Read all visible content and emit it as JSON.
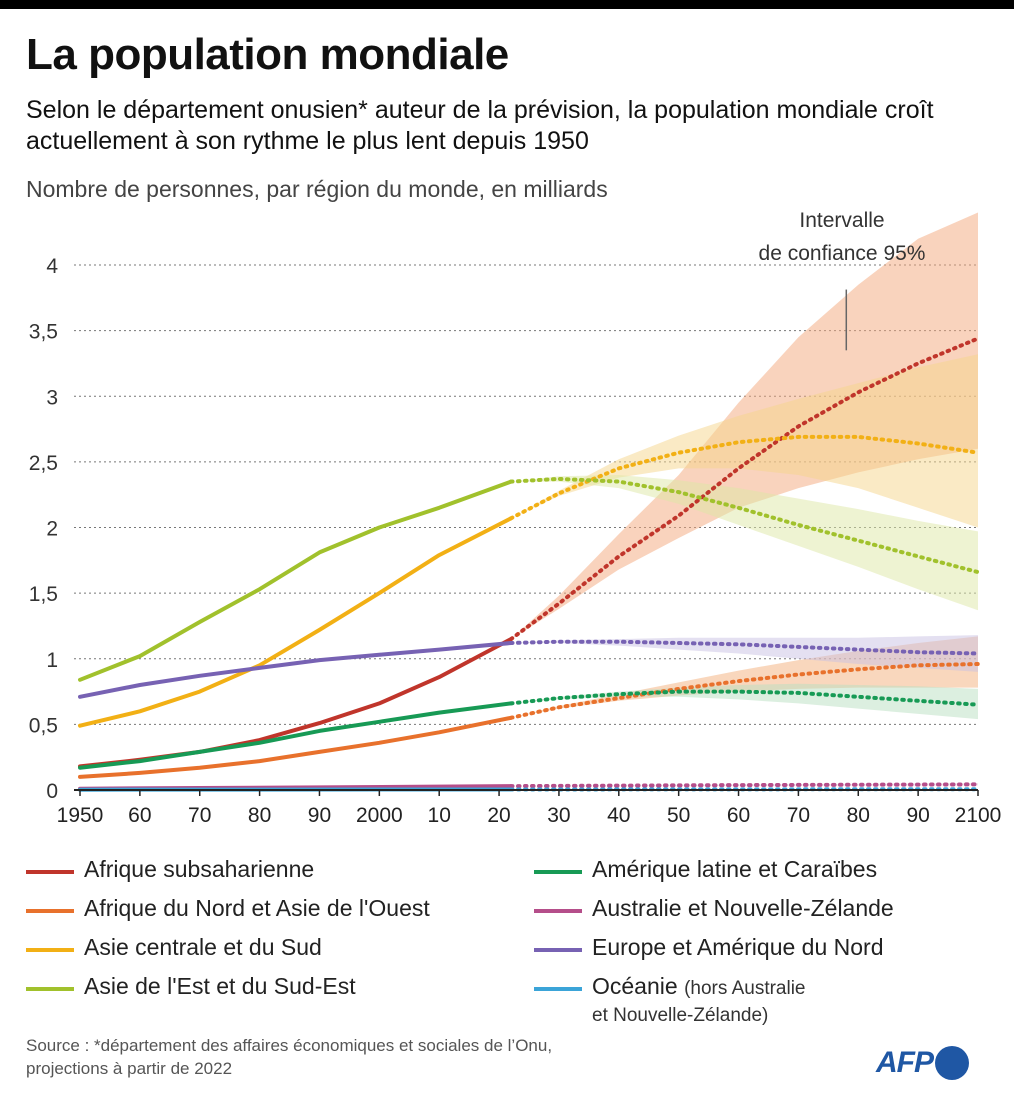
{
  "header": {
    "title": "La population mondiale",
    "subtitle": "Selon le département onusien* auteur de la prévision, la population mondiale croît actuellement à son rythme le plus lent depuis 1950",
    "unit_label": "Nombre de personnes, par région du monde, en milliards"
  },
  "chart_data": {
    "type": "line",
    "title": "La population mondiale",
    "ylabel": "Nombre de personnes, par région du monde, en milliards",
    "xlim": [
      1950,
      2100
    ],
    "ylim": [
      0,
      4
    ],
    "projection_start": 2022,
    "y_ticks": [
      {
        "value": 0,
        "label": "0"
      },
      {
        "value": 0.5,
        "label": "0,5"
      },
      {
        "value": 1,
        "label": "1"
      },
      {
        "value": 1.5,
        "label": "1,5"
      },
      {
        "value": 2,
        "label": "2"
      },
      {
        "value": 2.5,
        "label": "2,5"
      },
      {
        "value": 3,
        "label": "3"
      },
      {
        "value": 3.5,
        "label": "3,5"
      },
      {
        "value": 4,
        "label": "4"
      }
    ],
    "x_ticks": [
      {
        "value": 1950,
        "label": "1950"
      },
      {
        "value": 1960,
        "label": "60"
      },
      {
        "value": 1970,
        "label": "70"
      },
      {
        "value": 1980,
        "label": "80"
      },
      {
        "value": 1990,
        "label": "90"
      },
      {
        "value": 2000,
        "label": "2000"
      },
      {
        "value": 2010,
        "label": "10"
      },
      {
        "value": 2020,
        "label": "20"
      },
      {
        "value": 2030,
        "label": "30"
      },
      {
        "value": 2040,
        "label": "40"
      },
      {
        "value": 2050,
        "label": "50"
      },
      {
        "value": 2060,
        "label": "60"
      },
      {
        "value": 2070,
        "label": "70"
      },
      {
        "value": 2080,
        "label": "80"
      },
      {
        "value": 2090,
        "label": "90"
      },
      {
        "value": 2100,
        "label": "2100"
      }
    ],
    "annotation": {
      "line1": "Intervalle",
      "line2": "de confiance 95%",
      "x": 2078,
      "y_from": 3.35,
      "y_to": 3.95
    },
    "series": [
      {
        "name": "Afrique subsaharienne",
        "color": "#c0352b",
        "band_color": "#f4a87c",
        "historical": [
          [
            1950,
            0.18
          ],
          [
            1960,
            0.23
          ],
          [
            1970,
            0.29
          ],
          [
            1980,
            0.38
          ],
          [
            1990,
            0.51
          ],
          [
            2000,
            0.66
          ],
          [
            2010,
            0.86
          ],
          [
            2022,
            1.15
          ]
        ],
        "projection": [
          [
            2022,
            1.15
          ],
          [
            2030,
            1.42
          ],
          [
            2040,
            1.78
          ],
          [
            2050,
            2.09
          ],
          [
            2060,
            2.45
          ],
          [
            2070,
            2.77
          ],
          [
            2080,
            3.03
          ],
          [
            2090,
            3.25
          ],
          [
            2100,
            3.44
          ]
        ],
        "band_low": [
          [
            2022,
            1.15
          ],
          [
            2030,
            1.38
          ],
          [
            2040,
            1.68
          ],
          [
            2050,
            1.92
          ],
          [
            2060,
            2.15
          ],
          [
            2070,
            2.3
          ],
          [
            2080,
            2.42
          ],
          [
            2090,
            2.52
          ],
          [
            2100,
            2.6
          ]
        ],
        "band_high": [
          [
            2022,
            1.15
          ],
          [
            2030,
            1.48
          ],
          [
            2040,
            1.95
          ],
          [
            2050,
            2.4
          ],
          [
            2060,
            2.95
          ],
          [
            2070,
            3.45
          ],
          [
            2080,
            3.85
          ],
          [
            2090,
            4.2
          ],
          [
            2100,
            4.4
          ]
        ]
      },
      {
        "name": "Afrique du Nord et Asie de l'Ouest",
        "color": "#e8712c",
        "band_color": "#f4b07c",
        "historical": [
          [
            1950,
            0.1
          ],
          [
            1960,
            0.13
          ],
          [
            1970,
            0.17
          ],
          [
            1980,
            0.22
          ],
          [
            1990,
            0.29
          ],
          [
            2000,
            0.36
          ],
          [
            2010,
            0.44
          ],
          [
            2022,
            0.55
          ]
        ],
        "projection": [
          [
            2022,
            0.55
          ],
          [
            2030,
            0.63
          ],
          [
            2040,
            0.7
          ],
          [
            2050,
            0.77
          ],
          [
            2060,
            0.83
          ],
          [
            2070,
            0.88
          ],
          [
            2080,
            0.92
          ],
          [
            2090,
            0.95
          ],
          [
            2100,
            0.96
          ]
        ],
        "band_low": [
          [
            2022,
            0.55
          ],
          [
            2030,
            0.62
          ],
          [
            2040,
            0.68
          ],
          [
            2050,
            0.72
          ],
          [
            2060,
            0.75
          ],
          [
            2070,
            0.77
          ],
          [
            2080,
            0.78
          ],
          [
            2090,
            0.78
          ],
          [
            2100,
            0.78
          ]
        ],
        "band_high": [
          [
            2022,
            0.55
          ],
          [
            2030,
            0.64
          ],
          [
            2040,
            0.73
          ],
          [
            2050,
            0.82
          ],
          [
            2060,
            0.91
          ],
          [
            2070,
            0.99
          ],
          [
            2080,
            1.06
          ],
          [
            2090,
            1.12
          ],
          [
            2100,
            1.17
          ]
        ]
      },
      {
        "name": "Asie centrale et du Sud",
        "color": "#f2b015",
        "band_color": "#f6d68c",
        "historical": [
          [
            1950,
            0.49
          ],
          [
            1960,
            0.6
          ],
          [
            1970,
            0.75
          ],
          [
            1980,
            0.95
          ],
          [
            1990,
            1.22
          ],
          [
            2000,
            1.5
          ],
          [
            2010,
            1.79
          ],
          [
            2022,
            2.07
          ]
        ],
        "projection": [
          [
            2022,
            2.07
          ],
          [
            2030,
            2.26
          ],
          [
            2040,
            2.45
          ],
          [
            2050,
            2.57
          ],
          [
            2060,
            2.65
          ],
          [
            2070,
            2.69
          ],
          [
            2080,
            2.69
          ],
          [
            2090,
            2.64
          ],
          [
            2100,
            2.57
          ]
        ],
        "band_low": [
          [
            2022,
            2.07
          ],
          [
            2030,
            2.24
          ],
          [
            2040,
            2.38
          ],
          [
            2050,
            2.45
          ],
          [
            2060,
            2.45
          ],
          [
            2070,
            2.4
          ],
          [
            2080,
            2.3
          ],
          [
            2090,
            2.15
          ],
          [
            2100,
            2.0
          ]
        ],
        "band_high": [
          [
            2022,
            2.07
          ],
          [
            2030,
            2.28
          ],
          [
            2040,
            2.52
          ],
          [
            2050,
            2.7
          ],
          [
            2060,
            2.85
          ],
          [
            2070,
            2.98
          ],
          [
            2080,
            3.1
          ],
          [
            2090,
            3.22
          ],
          [
            2100,
            3.32
          ]
        ]
      },
      {
        "name": "Asie de l'Est et du Sud-Est",
        "color": "#a1c12c",
        "band_color": "#dde8a5",
        "historical": [
          [
            1950,
            0.84
          ],
          [
            1960,
            1.02
          ],
          [
            1970,
            1.28
          ],
          [
            1980,
            1.53
          ],
          [
            1990,
            1.81
          ],
          [
            2000,
            2.0
          ],
          [
            2010,
            2.15
          ],
          [
            2022,
            2.35
          ]
        ],
        "projection": [
          [
            2022,
            2.35
          ],
          [
            2030,
            2.37
          ],
          [
            2040,
            2.35
          ],
          [
            2050,
            2.27
          ],
          [
            2060,
            2.15
          ],
          [
            2070,
            2.02
          ],
          [
            2080,
            1.9
          ],
          [
            2090,
            1.78
          ],
          [
            2100,
            1.66
          ]
        ],
        "band_low": [
          [
            2022,
            2.35
          ],
          [
            2030,
            2.35
          ],
          [
            2040,
            2.3
          ],
          [
            2050,
            2.18
          ],
          [
            2060,
            2.02
          ],
          [
            2070,
            1.86
          ],
          [
            2080,
            1.7
          ],
          [
            2090,
            1.53
          ],
          [
            2100,
            1.37
          ]
        ],
        "band_high": [
          [
            2022,
            2.35
          ],
          [
            2030,
            2.39
          ],
          [
            2040,
            2.4
          ],
          [
            2050,
            2.36
          ],
          [
            2060,
            2.3
          ],
          [
            2070,
            2.22
          ],
          [
            2080,
            2.14
          ],
          [
            2090,
            2.05
          ],
          [
            2100,
            1.97
          ]
        ]
      },
      {
        "name": "Amérique latine et Caraïbes",
        "color": "#179a55",
        "band_color": "#b9dfc1",
        "historical": [
          [
            1950,
            0.17
          ],
          [
            1960,
            0.22
          ],
          [
            1970,
            0.29
          ],
          [
            1980,
            0.36
          ],
          [
            1990,
            0.45
          ],
          [
            2000,
            0.52
          ],
          [
            2010,
            0.59
          ],
          [
            2022,
            0.66
          ]
        ],
        "projection": [
          [
            2022,
            0.66
          ],
          [
            2030,
            0.7
          ],
          [
            2040,
            0.73
          ],
          [
            2050,
            0.75
          ],
          [
            2060,
            0.75
          ],
          [
            2070,
            0.74
          ],
          [
            2080,
            0.71
          ],
          [
            2090,
            0.68
          ],
          [
            2100,
            0.65
          ]
        ],
        "band_low": [
          [
            2022,
            0.66
          ],
          [
            2030,
            0.69
          ],
          [
            2040,
            0.71
          ],
          [
            2050,
            0.71
          ],
          [
            2060,
            0.69
          ],
          [
            2070,
            0.66
          ],
          [
            2080,
            0.62
          ],
          [
            2090,
            0.58
          ],
          [
            2100,
            0.54
          ]
        ],
        "band_high": [
          [
            2022,
            0.66
          ],
          [
            2030,
            0.71
          ],
          [
            2040,
            0.75
          ],
          [
            2050,
            0.78
          ],
          [
            2060,
            0.8
          ],
          [
            2070,
            0.81
          ],
          [
            2080,
            0.8
          ],
          [
            2090,
            0.79
          ],
          [
            2100,
            0.77
          ]
        ]
      },
      {
        "name": "Australie et Nouvelle-Zélande",
        "color": "#b54e8a",
        "band_color": "#e9c2d8",
        "historical": [
          [
            1950,
            0.01
          ],
          [
            1970,
            0.015
          ],
          [
            1990,
            0.02
          ],
          [
            2022,
            0.03
          ]
        ],
        "projection": [
          [
            2022,
            0.03
          ],
          [
            2060,
            0.037
          ],
          [
            2100,
            0.043
          ]
        ],
        "band_low": [
          [
            2022,
            0.03
          ],
          [
            2100,
            0.035
          ]
        ],
        "band_high": [
          [
            2022,
            0.03
          ],
          [
            2100,
            0.052
          ]
        ]
      },
      {
        "name": "Europe et Amérique du Nord",
        "color": "#7762b3",
        "band_color": "#c9c1e3",
        "historical": [
          [
            1950,
            0.71
          ],
          [
            1960,
            0.8
          ],
          [
            1970,
            0.87
          ],
          [
            1980,
            0.93
          ],
          [
            1990,
            0.99
          ],
          [
            2000,
            1.03
          ],
          [
            2010,
            1.07
          ],
          [
            2022,
            1.12
          ]
        ],
        "projection": [
          [
            2022,
            1.12
          ],
          [
            2030,
            1.13
          ],
          [
            2040,
            1.13
          ],
          [
            2050,
            1.12
          ],
          [
            2060,
            1.11
          ],
          [
            2070,
            1.09
          ],
          [
            2080,
            1.07
          ],
          [
            2090,
            1.05
          ],
          [
            2100,
            1.04
          ]
        ],
        "band_low": [
          [
            2022,
            1.12
          ],
          [
            2030,
            1.12
          ],
          [
            2040,
            1.1
          ],
          [
            2050,
            1.07
          ],
          [
            2060,
            1.04
          ],
          [
            2070,
            1.0
          ],
          [
            2080,
            0.96
          ],
          [
            2090,
            0.93
          ],
          [
            2100,
            0.9
          ]
        ],
        "band_high": [
          [
            2022,
            1.12
          ],
          [
            2030,
            1.14
          ],
          [
            2040,
            1.15
          ],
          [
            2050,
            1.16
          ],
          [
            2060,
            1.16
          ],
          [
            2070,
            1.16
          ],
          [
            2080,
            1.16
          ],
          [
            2090,
            1.17
          ],
          [
            2100,
            1.18
          ]
        ]
      },
      {
        "name": "Océanie",
        "color": "#3ba4d8",
        "band_color": "#b8dcee",
        "historical": [
          [
            1950,
            0.002
          ],
          [
            2022,
            0.004
          ]
        ],
        "projection": [
          [
            2022,
            0.004
          ],
          [
            2100,
            0.006
          ]
        ],
        "band_low": [
          [
            2022,
            0.004
          ],
          [
            2100,
            0.004
          ]
        ],
        "band_high": [
          [
            2022,
            0.004
          ],
          [
            2100,
            0.008
          ]
        ]
      }
    ]
  },
  "legend": {
    "items": [
      {
        "label": "Afrique subsaharienne",
        "color": "#c0352b"
      },
      {
        "label": "Afrique du Nord et Asie de l'Ouest",
        "color": "#e8712c"
      },
      {
        "label": "Asie centrale et du Sud",
        "color": "#f2b015"
      },
      {
        "label": "Asie de l'Est et du Sud-Est",
        "color": "#a1c12c"
      },
      {
        "label": "Amérique latine et Caraïbes",
        "color": "#179a55"
      },
      {
        "label": "Australie et Nouvelle-Zélande",
        "color": "#b54e8a"
      },
      {
        "label": "Europe et Amérique du Nord",
        "color": "#7762b3"
      },
      {
        "label": "Océanie",
        "sub1": "(hors Australie",
        "sub2": "et Nouvelle-Zélande)",
        "color": "#3ba4d8"
      }
    ]
  },
  "footer": {
    "source_line1": "Source : *département des affaires économiques et sociales de l’Onu,",
    "source_line2": "projections à partir de 2022",
    "logo_text": "AFP"
  }
}
